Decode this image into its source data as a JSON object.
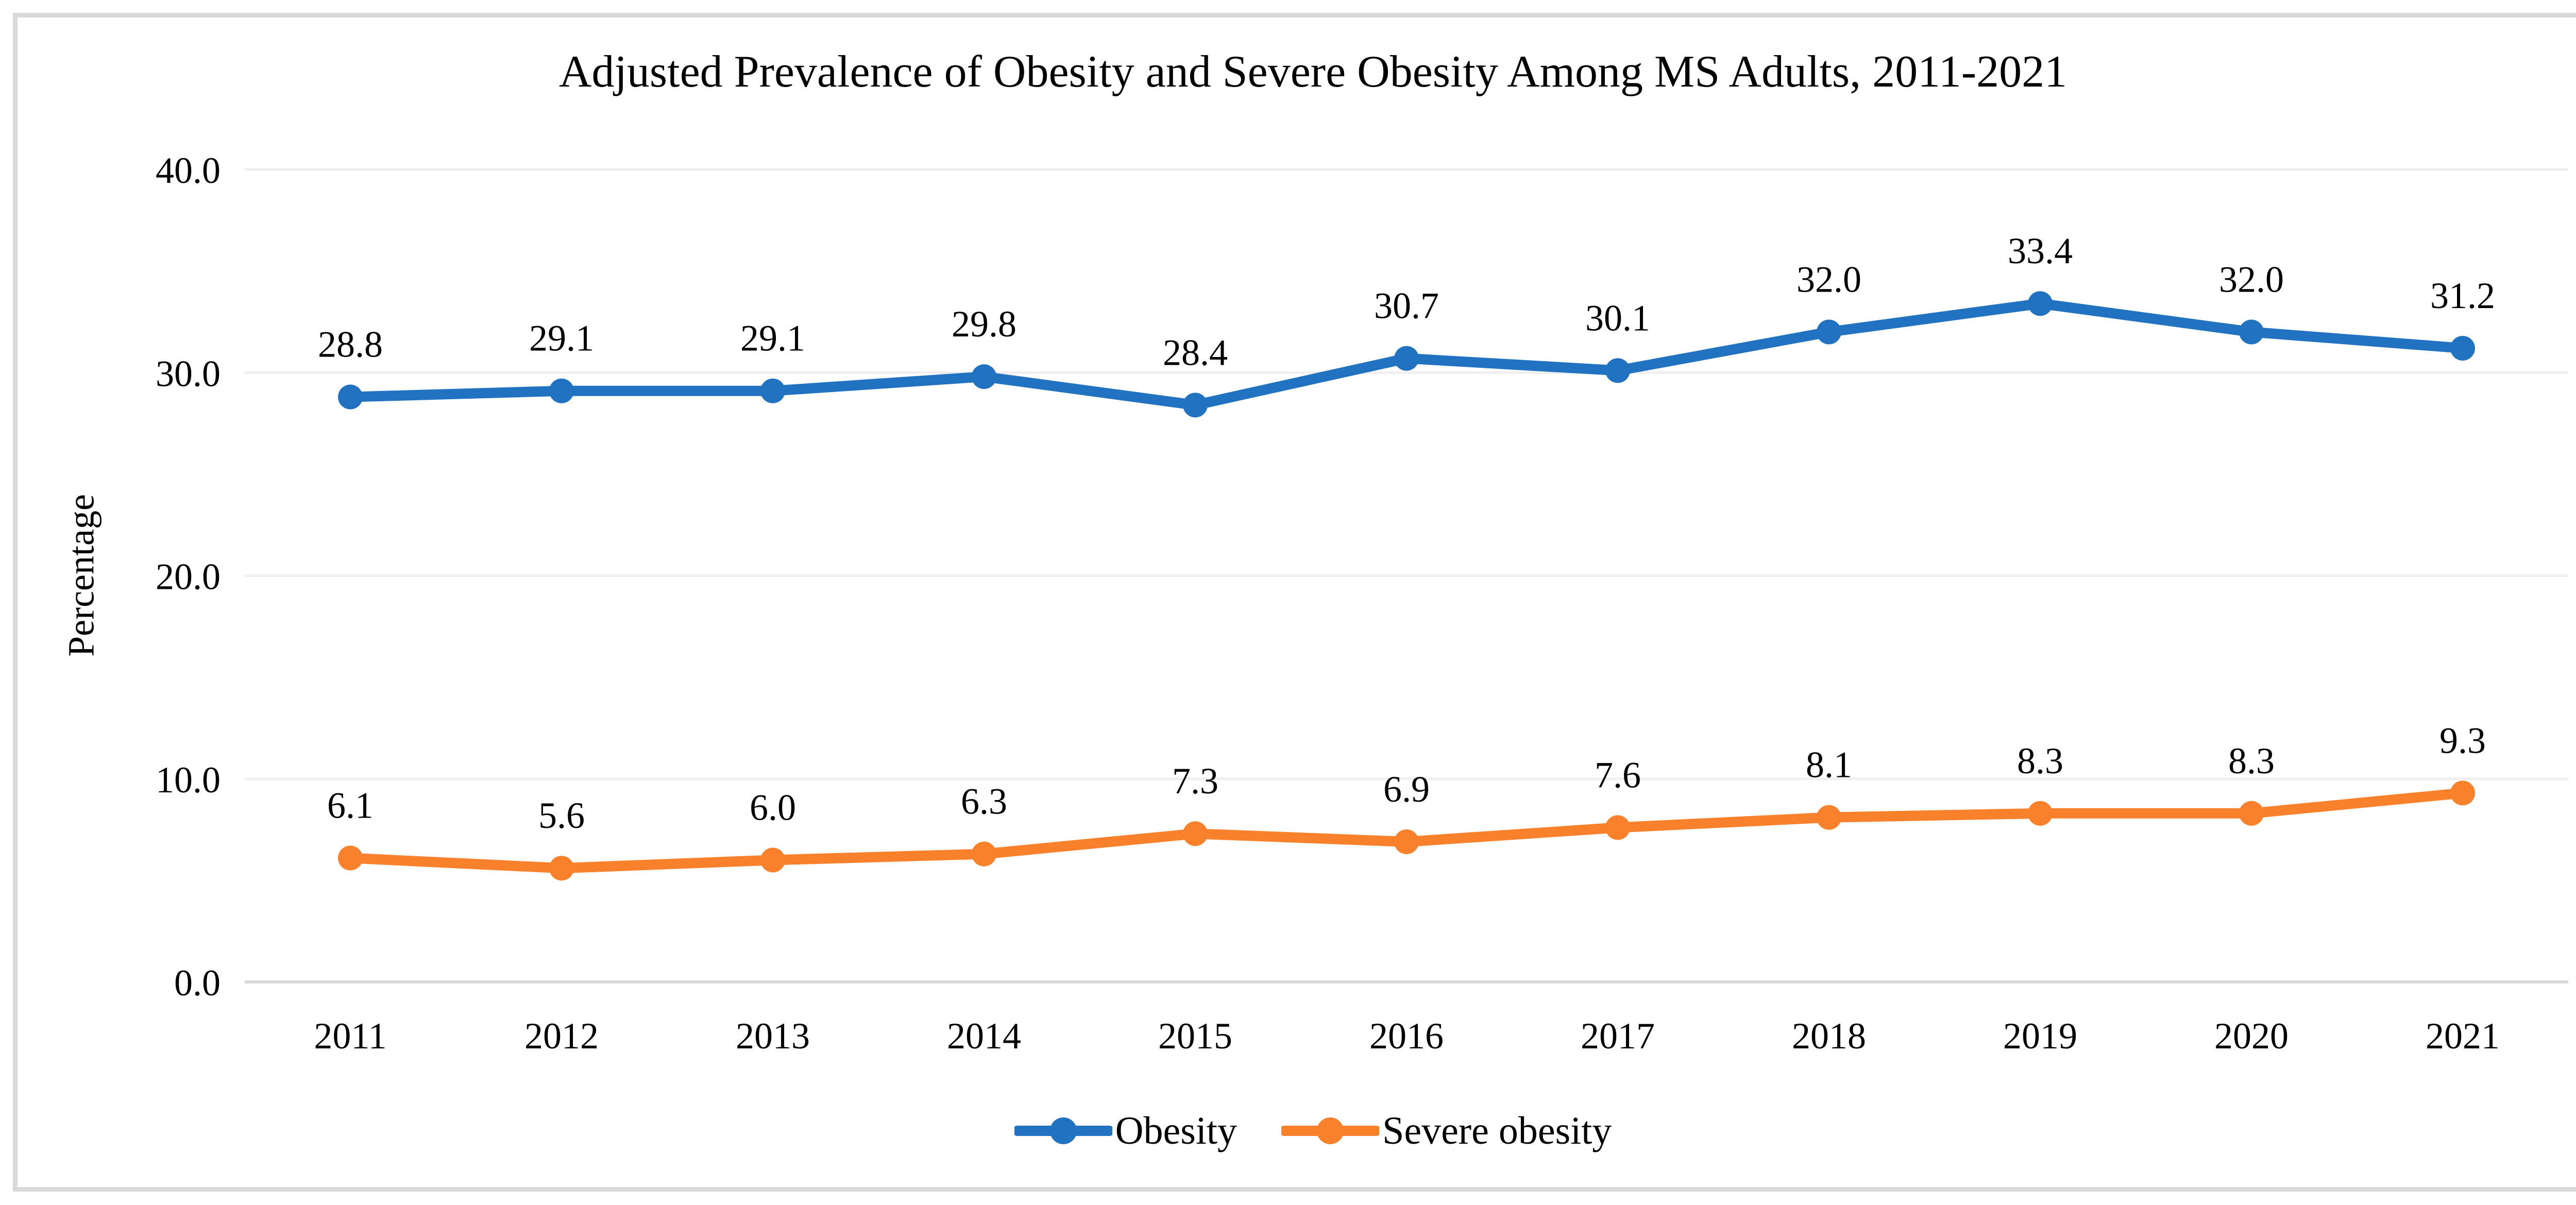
{
  "figure": {
    "background_color": "#FFFFFF",
    "border_color": "#D9D9D9"
  },
  "chart_data": {
    "type": "line",
    "title": "Adjusted Prevalence of Obesity and Severe Obesity Among MS Adults, 2011-2021",
    "xlabel": "",
    "ylabel": "Percentage",
    "x_categories": [
      "2011",
      "2012",
      "2013",
      "2014",
      "2015",
      "2016",
      "2017",
      "2018",
      "2019",
      "2020",
      "2021"
    ],
    "ylim": [
      0,
      40
    ],
    "y_ticks": [
      "0.0",
      "10.0",
      "20.0",
      "30.0",
      "40.0"
    ],
    "grid": "horizontal-only",
    "gridline_color": "#EFEFEF",
    "axis_line_color": "#D9D9D9",
    "text_color": "#000000",
    "legend_position": "bottom-center",
    "data_labels": "above points, one decimal",
    "series": [
      {
        "name": "Obesity",
        "color": "#2173C2",
        "values": [
          28.8,
          29.1,
          29.1,
          29.8,
          28.4,
          30.7,
          30.1,
          32.0,
          33.4,
          32.0,
          31.2
        ]
      },
      {
        "name": "Severe obesity",
        "color": "#FA812C",
        "values": [
          6.1,
          5.6,
          6.0,
          6.3,
          7.3,
          6.9,
          7.6,
          8.1,
          8.3,
          8.3,
          9.3
        ]
      }
    ]
  }
}
